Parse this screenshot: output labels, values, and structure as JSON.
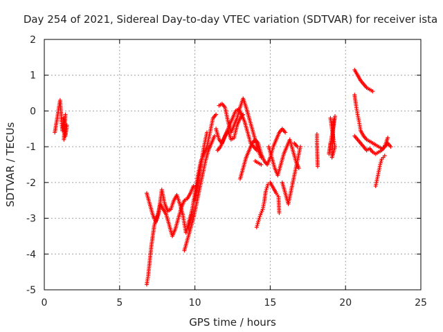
{
  "chart_data": {
    "type": "scatter",
    "title": "Day 254 of 2021, Sidereal Day-to-day VTEC variation (SDTVAR) for receiver ista",
    "xlabel": "GPS time / hours",
    "ylabel": "SDTVAR / TECUs",
    "xlim": [
      0,
      25
    ],
    "ylim": [
      -5,
      2
    ],
    "xticks": [
      0,
      5,
      10,
      15,
      20,
      25
    ],
    "yticks": [
      -5,
      -4,
      -3,
      -2,
      -1,
      0,
      1,
      2
    ],
    "grid": true,
    "marker": "+",
    "series": [
      {
        "name": "SDTVAR",
        "color": "#ff0000",
        "segments": [
          [
            [
              0.7,
              -0.6
            ],
            [
              1.05,
              0.3
            ],
            [
              1.1,
              0.0
            ],
            [
              1.15,
              -0.3
            ],
            [
              1.2,
              -0.55
            ],
            [
              1.3,
              -0.2
            ],
            [
              1.4,
              -0.7
            ],
            [
              1.5,
              -0.4
            ],
            [
              1.3,
              -0.8
            ],
            [
              1.4,
              -0.1
            ]
          ],
          [
            [
              6.8,
              -4.85
            ],
            [
              6.9,
              -4.6
            ],
            [
              7.0,
              -4.2
            ],
            [
              7.1,
              -3.8
            ],
            [
              7.2,
              -3.5
            ],
            [
              7.3,
              -3.2
            ],
            [
              7.5,
              -2.95
            ],
            [
              7.7,
              -2.6
            ],
            [
              7.9,
              -2.75
            ],
            [
              8.1,
              -2.9
            ],
            [
              8.3,
              -3.2
            ],
            [
              8.5,
              -3.5
            ],
            [
              8.7,
              -3.3
            ],
            [
              8.9,
              -3.0
            ],
            [
              9.1,
              -2.7
            ],
            [
              9.3,
              -2.5
            ],
            [
              9.5,
              -2.45
            ],
            [
              9.7,
              -2.3
            ],
            [
              9.9,
              -2.1
            ]
          ],
          [
            [
              6.8,
              -2.3
            ],
            [
              7.0,
              -2.6
            ],
            [
              7.2,
              -2.9
            ],
            [
              7.4,
              -3.1
            ],
            [
              7.6,
              -2.85
            ],
            [
              7.8,
              -2.2
            ],
            [
              8.0,
              -2.6
            ],
            [
              8.2,
              -2.8
            ],
            [
              8.4,
              -2.75
            ],
            [
              8.6,
              -2.5
            ],
            [
              8.8,
              -2.35
            ],
            [
              9.0,
              -2.6
            ],
            [
              9.2,
              -2.9
            ],
            [
              9.4,
              -3.4
            ],
            [
              9.6,
              -3.1
            ],
            [
              9.8,
              -2.8
            ]
          ],
          [
            [
              9.3,
              -3.9
            ],
            [
              9.5,
              -3.6
            ],
            [
              9.7,
              -3.3
            ],
            [
              9.9,
              -3.0
            ],
            [
              10.1,
              -2.6
            ],
            [
              10.3,
              -2.2
            ],
            [
              10.5,
              -1.8
            ],
            [
              10.7,
              -1.4
            ],
            [
              10.9,
              -1.1
            ],
            [
              11.1,
              -0.9
            ],
            [
              11.3,
              -0.7
            ]
          ],
          [
            [
              9.6,
              -3.3
            ],
            [
              9.8,
              -2.8
            ],
            [
              10.0,
              -2.3
            ],
            [
              10.2,
              -1.8
            ],
            [
              10.4,
              -1.4
            ],
            [
              10.6,
              -1.2
            ],
            [
              10.8,
              -1.0
            ],
            [
              11.0,
              -0.6
            ],
            [
              11.2,
              -0.2
            ],
            [
              11.4,
              -0.1
            ]
          ],
          [
            [
              10.0,
              -2.5
            ],
            [
              10.2,
              -2.0
            ],
            [
              10.4,
              -1.5
            ],
            [
              10.6,
              -1.0
            ],
            [
              10.8,
              -0.6
            ]
          ],
          [
            [
              11.6,
              0.15
            ],
            [
              11.8,
              0.2
            ],
            [
              12.0,
              0.1
            ],
            [
              12.2,
              -0.3
            ],
            [
              12.4,
              -0.6
            ],
            [
              12.6,
              -0.4
            ],
            [
              12.8,
              -0.2
            ],
            [
              13.0,
              0.1
            ],
            [
              13.2,
              0.35
            ],
            [
              13.4,
              0.1
            ],
            [
              13.6,
              -0.2
            ],
            [
              13.8,
              -0.5
            ],
            [
              14.0,
              -0.8
            ],
            [
              14.2,
              -1.1
            ],
            [
              14.4,
              -1.3
            ]
          ],
          [
            [
              11.4,
              -0.5
            ],
            [
              11.6,
              -0.8
            ],
            [
              11.8,
              -0.9
            ],
            [
              12.0,
              -0.7
            ],
            [
              12.2,
              -0.55
            ],
            [
              12.4,
              -0.8
            ],
            [
              12.6,
              -0.75
            ],
            [
              12.8,
              -0.4
            ],
            [
              13.0,
              -0.2
            ],
            [
              13.2,
              -0.1
            ]
          ],
          [
            [
              11.5,
              -1.1
            ],
            [
              11.7,
              -1.0
            ],
            [
              11.9,
              -0.8
            ],
            [
              12.1,
              -0.6
            ],
            [
              12.3,
              -0.4
            ],
            [
              12.5,
              -0.2
            ],
            [
              12.7,
              0.0
            ],
            [
              12.9,
              0.05
            ],
            [
              13.1,
              -0.1
            ],
            [
              13.3,
              -0.3
            ],
            [
              13.5,
              -0.6
            ],
            [
              13.7,
              -0.9
            ],
            [
              13.9,
              -1.0
            ],
            [
              14.1,
              -1.1
            ]
          ],
          [
            [
              13.0,
              -1.9
            ],
            [
              13.2,
              -1.6
            ],
            [
              13.4,
              -1.3
            ],
            [
              13.6,
              -1.1
            ],
            [
              13.8,
              -0.9
            ],
            [
              14.0,
              -0.8
            ],
            [
              14.2,
              -0.9
            ],
            [
              14.4,
              -1.2
            ],
            [
              14.6,
              -1.4
            ],
            [
              14.8,
              -1.5
            ],
            [
              15.0,
              -1.3
            ],
            [
              15.2,
              -1.0
            ],
            [
              15.4,
              -0.8
            ],
            [
              15.6,
              -0.6
            ],
            [
              15.8,
              -0.5
            ],
            [
              16.0,
              -0.6
            ]
          ],
          [
            [
              14.0,
              -1.4
            ],
            [
              14.2,
              -1.45
            ],
            [
              14.4,
              -1.5
            ]
          ],
          [
            [
              14.1,
              -3.25
            ],
            [
              14.2,
              -3.1
            ],
            [
              14.35,
              -2.9
            ],
            [
              14.5,
              -2.75
            ],
            [
              14.6,
              -2.55
            ],
            [
              14.7,
              -2.25
            ],
            [
              14.85,
              -2.05
            ],
            [
              15.0,
              -2.0
            ],
            [
              15.2,
              -2.15
            ],
            [
              15.4,
              -2.3
            ],
            [
              15.55,
              -2.4
            ],
            [
              15.6,
              -2.85
            ]
          ],
          [
            [
              14.9,
              -1.0
            ],
            [
              15.1,
              -1.3
            ],
            [
              15.3,
              -1.6
            ],
            [
              15.5,
              -1.8
            ],
            [
              15.7,
              -1.5
            ],
            [
              15.9,
              -1.2
            ],
            [
              16.1,
              -1.0
            ],
            [
              16.3,
              -0.8
            ],
            [
              16.5,
              -1.1
            ],
            [
              16.7,
              -1.4
            ],
            [
              16.9,
              -1.6
            ]
          ],
          [
            [
              15.8,
              -2.0
            ],
            [
              16.0,
              -2.3
            ],
            [
              16.2,
              -2.6
            ],
            [
              16.4,
              -2.2
            ],
            [
              16.6,
              -1.8
            ],
            [
              16.8,
              -1.4
            ],
            [
              17.0,
              -1.0
            ]
          ],
          [
            [
              16.6,
              -0.9
            ],
            [
              16.8,
              -1.0
            ]
          ],
          [
            [
              18.1,
              -0.65
            ],
            [
              18.1,
              -0.9
            ],
            [
              18.15,
              -1.55
            ]
          ],
          [
            [
              19.0,
              -0.2
            ],
            [
              19.1,
              -0.5
            ],
            [
              19.2,
              -0.8
            ],
            [
              19.3,
              -1.0
            ],
            [
              19.1,
              -1.3
            ],
            [
              19.2,
              -0.3
            ],
            [
              19.3,
              -0.15
            ],
            [
              18.9,
              -1.2
            ],
            [
              19.0,
              -0.9
            ]
          ],
          [
            [
              20.6,
              1.15
            ],
            [
              20.8,
              1.0
            ],
            [
              21.0,
              0.85
            ],
            [
              21.2,
              0.75
            ],
            [
              21.4,
              0.65
            ],
            [
              21.6,
              0.6
            ],
            [
              21.8,
              0.55
            ]
          ],
          [
            [
              20.6,
              0.45
            ],
            [
              20.7,
              0.15
            ],
            [
              20.8,
              -0.1
            ],
            [
              20.9,
              -0.3
            ],
            [
              21.0,
              -0.55
            ],
            [
              21.2,
              -0.7
            ],
            [
              21.4,
              -0.8
            ],
            [
              21.6,
              -0.85
            ],
            [
              21.8,
              -0.9
            ],
            [
              22.0,
              -0.95
            ],
            [
              22.2,
              -1.0
            ],
            [
              22.4,
              -1.05
            ],
            [
              22.6,
              -1.0
            ],
            [
              22.8,
              -0.9
            ],
            [
              23.0,
              -1.0
            ]
          ],
          [
            [
              20.6,
              -0.7
            ],
            [
              20.8,
              -0.8
            ],
            [
              21.0,
              -0.9
            ],
            [
              21.2,
              -1.0
            ],
            [
              21.4,
              -1.1
            ],
            [
              21.6,
              -1.05
            ],
            [
              21.8,
              -1.15
            ],
            [
              22.0,
              -1.2
            ],
            [
              22.2,
              -1.15
            ],
            [
              22.4,
              -1.1
            ],
            [
              22.6,
              -1.0
            ],
            [
              22.8,
              -0.75
            ]
          ],
          [
            [
              22.0,
              -2.1
            ],
            [
              22.1,
              -1.9
            ],
            [
              22.2,
              -1.7
            ],
            [
              22.3,
              -1.5
            ],
            [
              22.4,
              -1.35
            ],
            [
              22.5,
              -1.3
            ],
            [
              22.6,
              -1.25
            ]
          ]
        ]
      }
    ]
  }
}
